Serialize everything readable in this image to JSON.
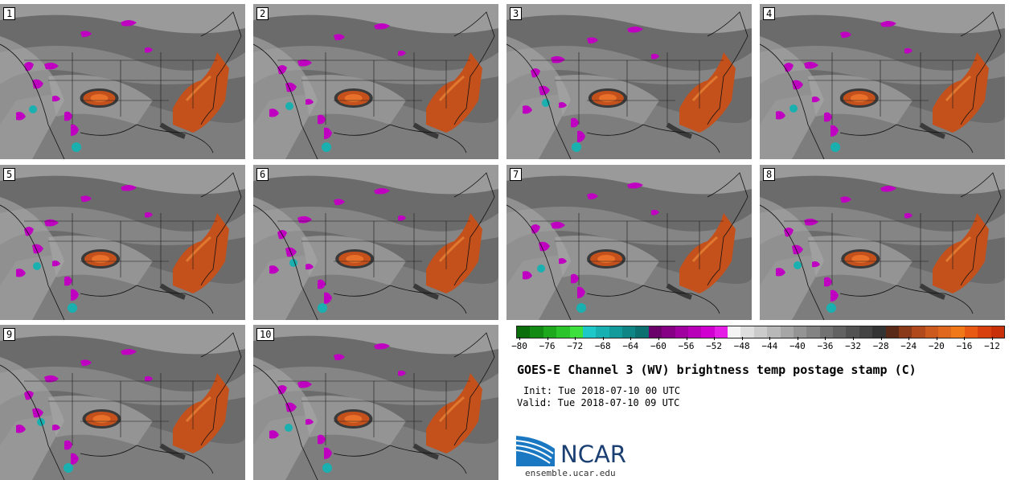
{
  "panels": [
    {
      "label": "1"
    },
    {
      "label": "2"
    },
    {
      "label": "3"
    },
    {
      "label": "4"
    },
    {
      "label": "5"
    },
    {
      "label": "6"
    },
    {
      "label": "7"
    },
    {
      "label": "8"
    },
    {
      "label": "9"
    },
    {
      "label": "10"
    }
  ],
  "colorbar": {
    "ticks": [
      "−80",
      "−76",
      "−72",
      "−68",
      "−64",
      "−60",
      "−56",
      "−52",
      "−48",
      "−44",
      "−40",
      "−36",
      "−32",
      "−28",
      "−24",
      "−20",
      "−16",
      "−12"
    ],
    "colors": [
      "#0a6e0a",
      "#138a13",
      "#1ea81e",
      "#2bc42b",
      "#3ee03e",
      "#1ec8c8",
      "#18b0b0",
      "#139a9a",
      "#108585",
      "#0c7070",
      "#6a006a",
      "#860086",
      "#a000a0",
      "#b800b8",
      "#d000d0",
      "#e41ee4",
      "#f4f4f4",
      "#dedede",
      "#cbcbcb",
      "#b8b8b8",
      "#a6a6a6",
      "#949494",
      "#838383",
      "#727272",
      "#626262",
      "#525252",
      "#434343",
      "#343434",
      "#5a2a18",
      "#8a3a18",
      "#b04a1c",
      "#cc5a1e",
      "#e0681e",
      "#f07818",
      "#e85a14",
      "#d8400e",
      "#c8300a"
    ]
  },
  "title": "GOES-E Channel 3 (WV) brightness temp postage stamp (C)",
  "init": "Init: Tue 2018-07-10 00 UTC",
  "valid": "Valid: Tue 2018-07-10 09 UTC",
  "logo": {
    "name": "NCAR",
    "url": "ensemble.ucar.edu"
  },
  "field_colors": {
    "dry": "#c4501c",
    "moist": "#c000c0",
    "cold": "#1ab0b0"
  }
}
